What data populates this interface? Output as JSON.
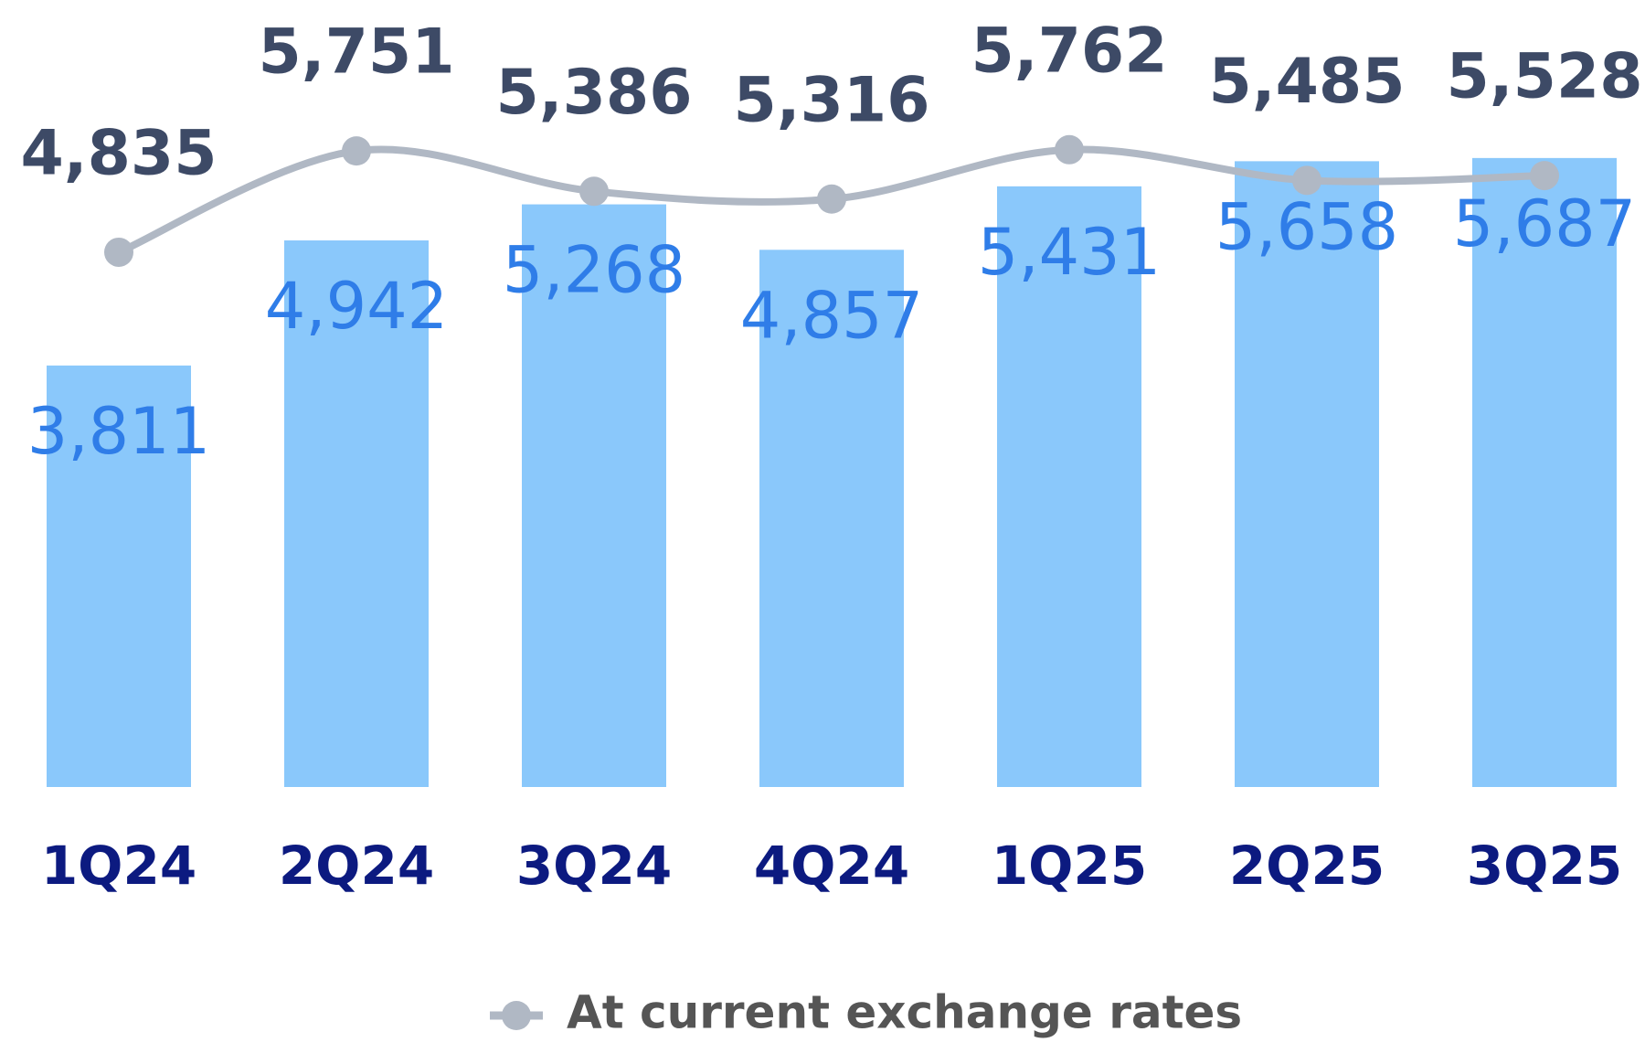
{
  "chart_data": {
    "type": "bar",
    "categories": [
      "1Q24",
      "2Q24",
      "3Q24",
      "4Q24",
      "1Q25",
      "2Q25",
      "3Q25"
    ],
    "series": [
      {
        "type": "bar",
        "color": "#8ac8fb",
        "label_color": "#2f7de8",
        "values": [
          3811,
          4942,
          5268,
          4857,
          5431,
          5658,
          5687
        ],
        "value_labels": [
          "3,811",
          "4,942",
          "5,268",
          "4,857",
          "5,431",
          "5,658",
          "5,687"
        ]
      },
      {
        "type": "line",
        "name": "At current exchange rates",
        "color": "#b0b8c4",
        "label_color": "#3d4a66",
        "values": [
          4835,
          5751,
          5386,
          5316,
          5762,
          5485,
          5528
        ],
        "value_labels": [
          "4,835",
          "5,751",
          "5,386",
          "5,316",
          "5,762",
          "5,485",
          "5,528"
        ]
      }
    ],
    "ylim": [
      0,
      7000
    ]
  }
}
